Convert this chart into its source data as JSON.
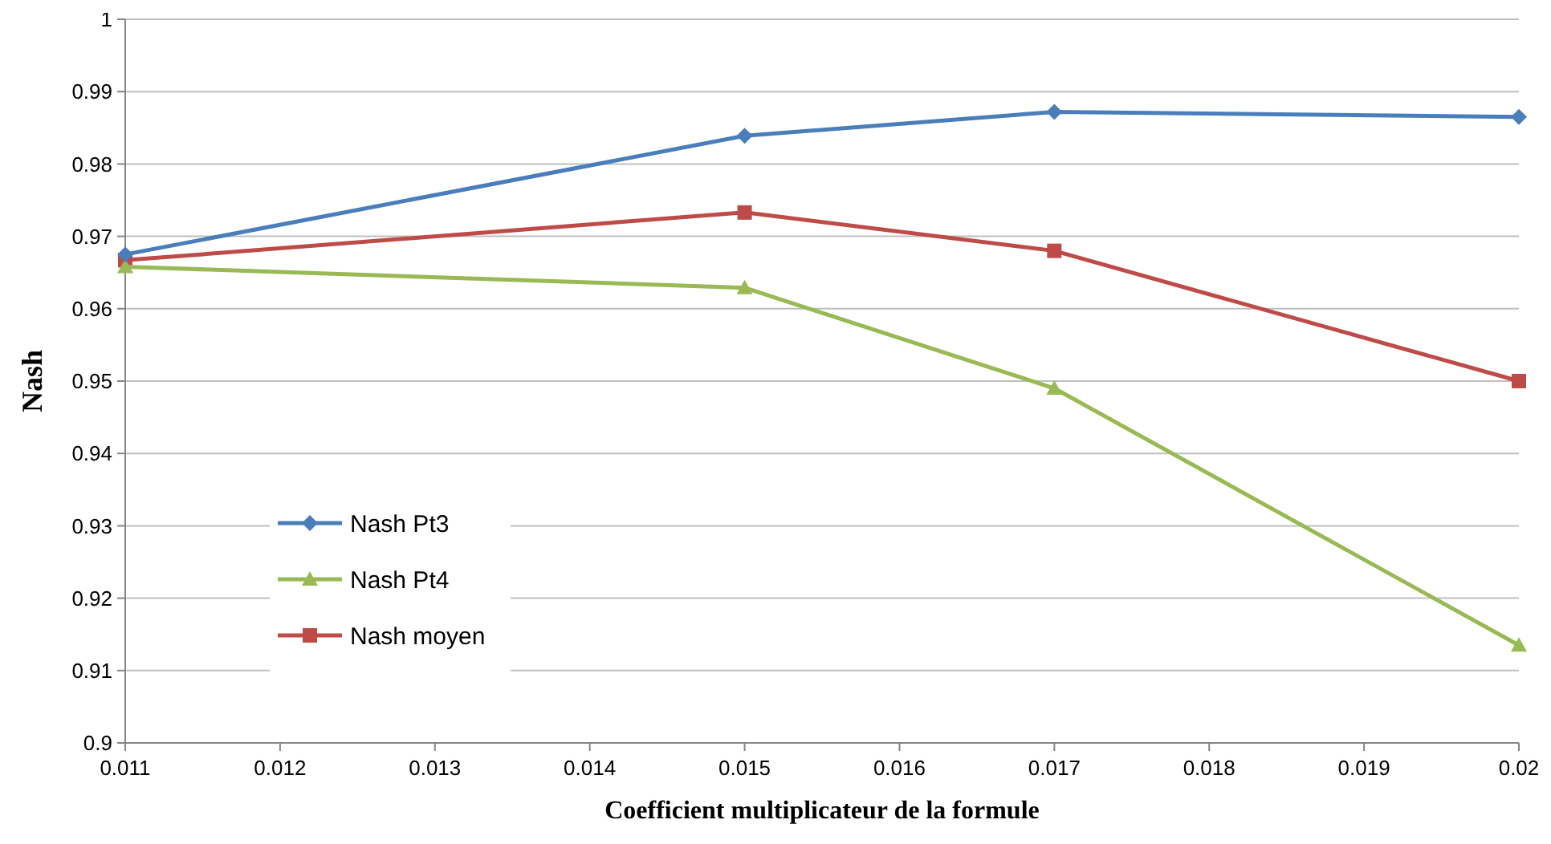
{
  "chart_data": {
    "type": "line",
    "xlabel": "Coefficient multiplicateur de la formule",
    "ylabel": "Nash",
    "x": [
      0.011,
      0.015,
      0.017,
      0.02
    ],
    "series": [
      {
        "name": "Nash Pt3",
        "color": "#4a7ebb",
        "marker": "diamond",
        "values": [
          0.9675,
          0.9839,
          0.9872,
          0.9865
        ]
      },
      {
        "name": "Nash Pt4",
        "color": "#98b954",
        "marker": "triangle",
        "values": [
          0.9658,
          0.9629,
          0.949,
          0.9135
        ]
      },
      {
        "name": "Nash moyen",
        "color": "#be4b48",
        "marker": "square",
        "values": [
          0.9667,
          0.9733,
          0.968,
          0.95
        ]
      }
    ],
    "xlim": [
      0.011,
      0.02
    ],
    "xticks": [
      0.011,
      0.012,
      0.013,
      0.014,
      0.015,
      0.016,
      0.017,
      0.018,
      0.019,
      0.02
    ],
    "ylim": [
      0.9,
      1
    ],
    "yticks": [
      0.9,
      0.91,
      0.92,
      0.93,
      0.94,
      0.95,
      0.96,
      0.97,
      0.98,
      0.99,
      1
    ],
    "grid": "y",
    "legend": "left",
    "line_style": "solid"
  }
}
